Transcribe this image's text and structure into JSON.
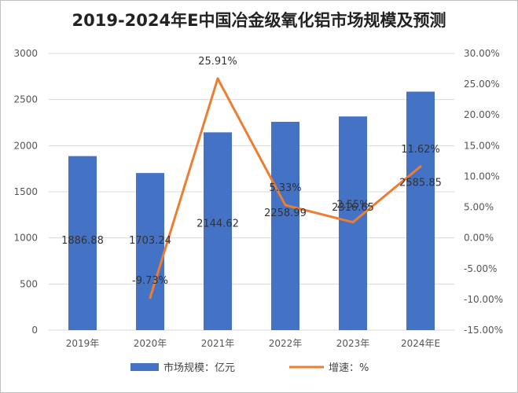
{
  "chart_data": {
    "type": "bar",
    "title": "2019-2024年E中国冶金级氧化铝市场规模及预测",
    "categories": [
      "2019年",
      "2020年",
      "2021年",
      "2022年",
      "2023年",
      "2024年E"
    ],
    "series": [
      {
        "name": "市场规模：亿元",
        "type": "bar",
        "axis": "left",
        "color": "#4472c4",
        "values": [
          1886.88,
          1703.24,
          2144.62,
          2258.99,
          2316.65,
          2585.85
        ],
        "labels": [
          "1886.88",
          "1703.24",
          "2144.62",
          "2258.99",
          "2316.65",
          "2585.85"
        ]
      },
      {
        "name": "增速：%",
        "type": "line",
        "axis": "right",
        "color": "#ed7d31",
        "values": [
          null,
          -9.73,
          25.91,
          5.33,
          2.55,
          11.62
        ],
        "labels": [
          "",
          "-9.73%",
          "25.91%",
          "5.33%",
          "2.55%",
          "11.62%"
        ]
      }
    ],
    "y_left": {
      "ylim": [
        0,
        3000
      ],
      "ticks": [
        0,
        500,
        1000,
        1500,
        2000,
        2500,
        3000
      ],
      "tick_labels": [
        "0",
        "500",
        "1000",
        "1500",
        "2000",
        "2500",
        "3000"
      ]
    },
    "y_right": {
      "ylim": [
        -15,
        30
      ],
      "ticks": [
        -15,
        -10,
        -5,
        0,
        5,
        10,
        15,
        20,
        25,
        30
      ],
      "tick_labels": [
        "-15.00%",
        "-10.00%",
        "-5.00%",
        "0.00%",
        "5.00%",
        "10.00%",
        "15.00%",
        "20.00%",
        "25.00%",
        "30.00%"
      ]
    },
    "grid": true,
    "legend_position": "bottom"
  }
}
